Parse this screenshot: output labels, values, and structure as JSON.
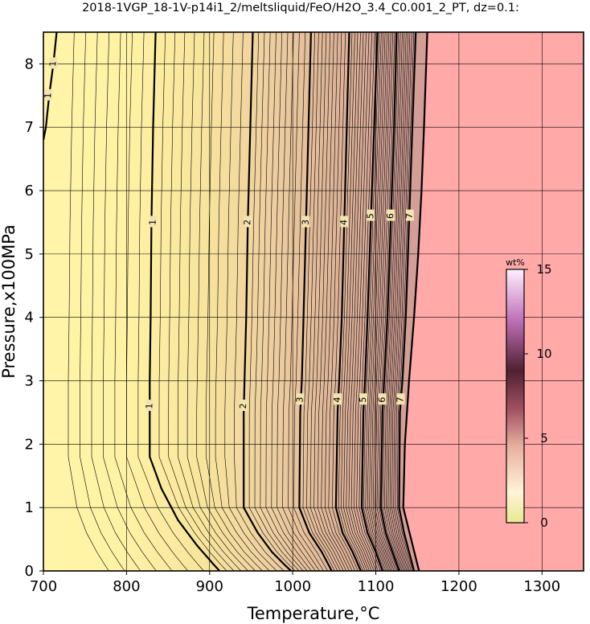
{
  "chart_data": {
    "type": "heatmap",
    "title": "2018-1VGP_18-1V-p14i1_2/meltsliquid/FeO/H2O_3.4_C0.001_2_PT, dz=0.1:",
    "xlabel": "Temperature,°C",
    "ylabel": "Pressure,x100MPa",
    "xlim": [
      700,
      1350
    ],
    "ylim": [
      0,
      8.5
    ],
    "xticks": [
      "700",
      "800",
      "900",
      "1000",
      "1100",
      "1200",
      "1300"
    ],
    "yticks": [
      "0",
      "1",
      "2",
      "3",
      "4",
      "5",
      "6",
      "7",
      "8"
    ],
    "grid": true,
    "colorbar": {
      "title": "wt%",
      "range": [
        0,
        15
      ],
      "ticks": [
        "0",
        "5",
        "10",
        "15"
      ],
      "colors": [
        "#e8e89a",
        "#fff0c8",
        "#e8b0a0",
        "#a05060",
        "#502030",
        "#c878c0",
        "#ffe8ff"
      ]
    },
    "saturated_region": {
      "color": "#ffaaa8",
      "note_value_above_T_at_P": [
        [
          0,
          1152
        ],
        [
          1,
          1133
        ],
        [
          2,
          1135
        ],
        [
          3,
          1140
        ],
        [
          4,
          1146
        ],
        [
          5,
          1151
        ],
        [
          6,
          1155
        ],
        [
          7,
          1158
        ],
        [
          8.5,
          1162
        ]
      ]
    },
    "major_contours": [
      {
        "label": "1",
        "points": [
          [
            835,
            8.5
          ],
          [
            832,
            7
          ],
          [
            830,
            5.5
          ],
          [
            829,
            4
          ],
          [
            828,
            3
          ],
          [
            828,
            2.5
          ],
          [
            828,
            1.8
          ],
          [
            842,
            1.3
          ],
          [
            862,
            0.8
          ],
          [
            885,
            0.4
          ],
          [
            905,
            0.1
          ],
          [
            912,
            0
          ]
        ]
      },
      {
        "label": "2",
        "points": [
          [
            952,
            8.5
          ],
          [
            949,
            7
          ],
          [
            946,
            5.5
          ],
          [
            944,
            4
          ],
          [
            942,
            3
          ],
          [
            941,
            2.5
          ],
          [
            941,
            1.0
          ],
          [
            958,
            0.6
          ],
          [
            975,
            0.3
          ],
          [
            990,
            0.1
          ],
          [
            998,
            0
          ]
        ]
      },
      {
        "label": "3",
        "points": [
          [
            1022,
            8.5
          ],
          [
            1019,
            7
          ],
          [
            1016,
            5.5
          ],
          [
            1013,
            4
          ],
          [
            1011,
            3
          ],
          [
            1009,
            2.5
          ],
          [
            1008,
            1.0
          ],
          [
            1020,
            0.6
          ],
          [
            1035,
            0.3
          ],
          [
            1047,
            0
          ]
        ]
      },
      {
        "label": "4",
        "points": [
          [
            1068,
            8.5
          ],
          [
            1065,
            7
          ],
          [
            1062,
            5.5
          ],
          [
            1059,
            4
          ],
          [
            1056,
            3
          ],
          [
            1054,
            2.5
          ],
          [
            1052,
            1.0
          ],
          [
            1060,
            0.6
          ],
          [
            1072,
            0.3
          ],
          [
            1082,
            0
          ]
        ]
      },
      {
        "label": "5",
        "points": [
          [
            1102,
            8.5
          ],
          [
            1098,
            7
          ],
          [
            1094,
            5.5
          ],
          [
            1090,
            4
          ],
          [
            1087,
            3
          ],
          [
            1085,
            2.5
          ],
          [
            1083,
            1.0
          ],
          [
            1090,
            0.6
          ],
          [
            1100,
            0.3
          ],
          [
            1108,
            0
          ]
        ]
      },
      {
        "label": "6",
        "points": [
          [
            1125,
            8.5
          ],
          [
            1122,
            7
          ],
          [
            1118,
            5.5
          ],
          [
            1114,
            4
          ],
          [
            1110,
            3
          ],
          [
            1108,
            2.5
          ],
          [
            1106,
            1.0
          ],
          [
            1112,
            0.6
          ],
          [
            1120,
            0.3
          ],
          [
            1128,
            0
          ]
        ]
      },
      {
        "label": "7",
        "points": [
          [
            1148,
            8.5
          ],
          [
            1144,
            7
          ],
          [
            1140,
            5.5
          ],
          [
            1136,
            4
          ],
          [
            1132,
            3
          ],
          [
            1129,
            2.5
          ],
          [
            1128,
            1.0
          ],
          [
            1134,
            0.6
          ],
          [
            1140,
            0.3
          ],
          [
            1146,
            0
          ]
        ]
      }
    ],
    "contour_labels": [
      {
        "text": "1",
        "T": 832,
        "P": 5.5
      },
      {
        "text": "1",
        "T": 828,
        "P": 2.6
      },
      {
        "text": "2",
        "T": 946,
        "P": 5.5
      },
      {
        "text": "2",
        "T": 941,
        "P": 2.6
      },
      {
        "text": "3",
        "T": 1016,
        "P": 5.5
      },
      {
        "text": "3",
        "T": 1009,
        "P": 2.7
      },
      {
        "text": "4",
        "T": 1062,
        "P": 5.5
      },
      {
        "text": "4",
        "T": 1054,
        "P": 2.7
      },
      {
        "text": "5",
        "T": 1094,
        "P": 5.6
      },
      {
        "text": "5",
        "T": 1085,
        "P": 2.7
      },
      {
        "text": "6",
        "T": 1118,
        "P": 5.6
      },
      {
        "text": "6",
        "T": 1108,
        "P": 2.7
      },
      {
        "text": "7",
        "T": 1141,
        "P": 5.6
      },
      {
        "text": "7",
        "T": 1130,
        "P": 2.7
      },
      {
        "text": "1",
        "T": 712,
        "P": 8.0
      },
      {
        "text": "1",
        "T": 706,
        "P": 7.5
      }
    ]
  }
}
